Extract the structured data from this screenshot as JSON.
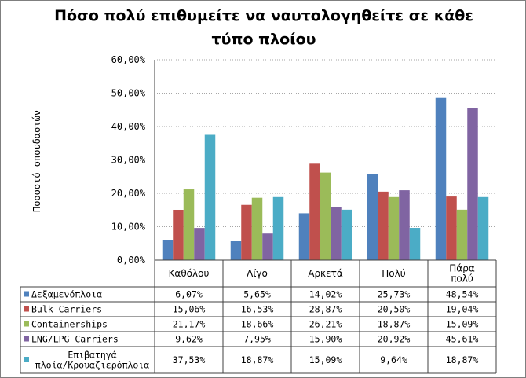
{
  "chart_data": {
    "type": "bar",
    "title": "Πόσο πολύ επιθυμείτε να ναυτολογηθείτε σε κάθε τύπο πλοίου",
    "ylabel": "Ποσοστό σπουδαστών",
    "ylim": [
      0,
      60
    ],
    "yticks": [
      "0,00%",
      "10,00%",
      "20,00%",
      "30,00%",
      "40,00%",
      "50,00%",
      "60,00%"
    ],
    "grid": "horizontal",
    "legend": "data-table",
    "categories": [
      [
        "Καθόλου"
      ],
      [
        "Λίγο"
      ],
      [
        "Αρκετά"
      ],
      [
        "Πολύ"
      ],
      [
        "Πάρα",
        "πολύ"
      ]
    ],
    "series": [
      {
        "name": "Δεξαμενόπλοια",
        "color": "#4f81bd",
        "values": [
          6.07,
          5.65,
          14.02,
          25.73,
          48.54
        ],
        "labels": [
          "6,07%",
          "5,65%",
          "14,02%",
          "25,73%",
          "48,54%"
        ]
      },
      {
        "name": "Bulk Carriers",
        "color": "#c0504d",
        "values": [
          15.06,
          16.53,
          28.87,
          20.5,
          19.04
        ],
        "labels": [
          "15,06%",
          "16,53%",
          "28,87%",
          "20,50%",
          "19,04%"
        ]
      },
      {
        "name": "Containerships",
        "color": "#9bbb59",
        "values": [
          21.17,
          18.66,
          26.21,
          18.87,
          15.09
        ],
        "labels": [
          "21,17%",
          "18,66%",
          "26,21%",
          "18,87%",
          "15,09%"
        ]
      },
      {
        "name": "LNG/LPG Carriers",
        "color": "#8064a2",
        "values": [
          9.62,
          7.95,
          15.9,
          20.92,
          45.61
        ],
        "labels": [
          "9,62%",
          "7,95%",
          "15,90%",
          "20,92%",
          "45,61%"
        ]
      },
      {
        "name": "Επιβατηγά πλοία/Κρουαζιερόπλοια",
        "color": "#4bacc6",
        "name_lines": [
          "Επιβατηγά",
          "πλοία/Κρουαζιερόπλοια"
        ],
        "values": [
          37.53,
          18.87,
          15.09,
          9.64,
          18.87
        ],
        "labels": [
          "37,53%",
          "18,87%",
          "15,09%",
          "9,64%",
          "18,87%"
        ]
      }
    ]
  }
}
